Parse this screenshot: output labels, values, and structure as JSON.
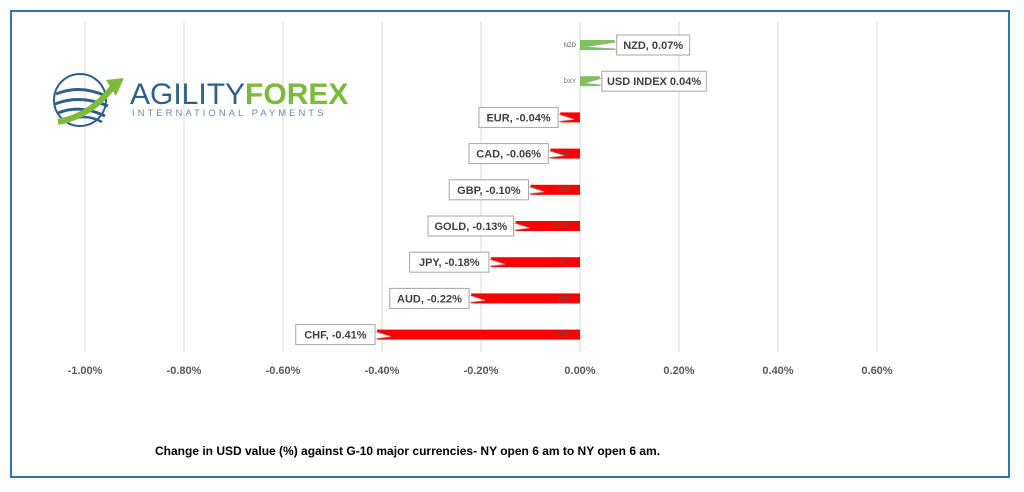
{
  "logo": {
    "brand_left": "AGILITY",
    "brand_right": "FOREX",
    "tagline": "INTERNATIONAL PAYMENTS",
    "colors": {
      "primary": "#2f5f8a",
      "accent": "#7cba3b"
    }
  },
  "caption": "Change in  USD value (%)  against  G-10 major currencies- NY open 6 am to NY open 6 am.",
  "chart_data": {
    "type": "bar",
    "orientation": "horizontal",
    "title": "",
    "xlabel": "",
    "ylabel": "",
    "xlim": [
      -1.0,
      0.7
    ],
    "ticks": [
      "-1.00%",
      "-0.80%",
      "-0.60%",
      "-0.40%",
      "-0.20%",
      "0.00%",
      "0.20%",
      "0.40%",
      "0.60%"
    ],
    "tick_values": [
      -1.0,
      -0.8,
      -0.6,
      -0.4,
      -0.2,
      0.0,
      0.2,
      0.4,
      0.6
    ],
    "grid": true,
    "colors": {
      "positive": "#7dc35b",
      "negative": "#ff0000"
    },
    "bars": [
      {
        "category": "NZD",
        "value": 0.07,
        "label": "NZD, 0.07%"
      },
      {
        "category": "DXY",
        "value": 0.04,
        "label": "USD INDEX 0.04%"
      },
      {
        "category": "EUR",
        "value": -0.04,
        "label": "EUR, -0.04%"
      },
      {
        "category": "CAD",
        "value": -0.06,
        "label": "CAD, -0.06%"
      },
      {
        "category": "GBP",
        "value": -0.1,
        "label": "GBP, -0.10%"
      },
      {
        "category": "GOLD",
        "value": -0.13,
        "label": "GOLD, -0.13%"
      },
      {
        "category": "JPY",
        "value": -0.18,
        "label": "JPY, -0.18%"
      },
      {
        "category": "AUD",
        "value": -0.22,
        "label": "AUD, -0.22%"
      },
      {
        "category": "CHF",
        "value": -0.41,
        "label": "CHF, -0.41%"
      }
    ]
  }
}
